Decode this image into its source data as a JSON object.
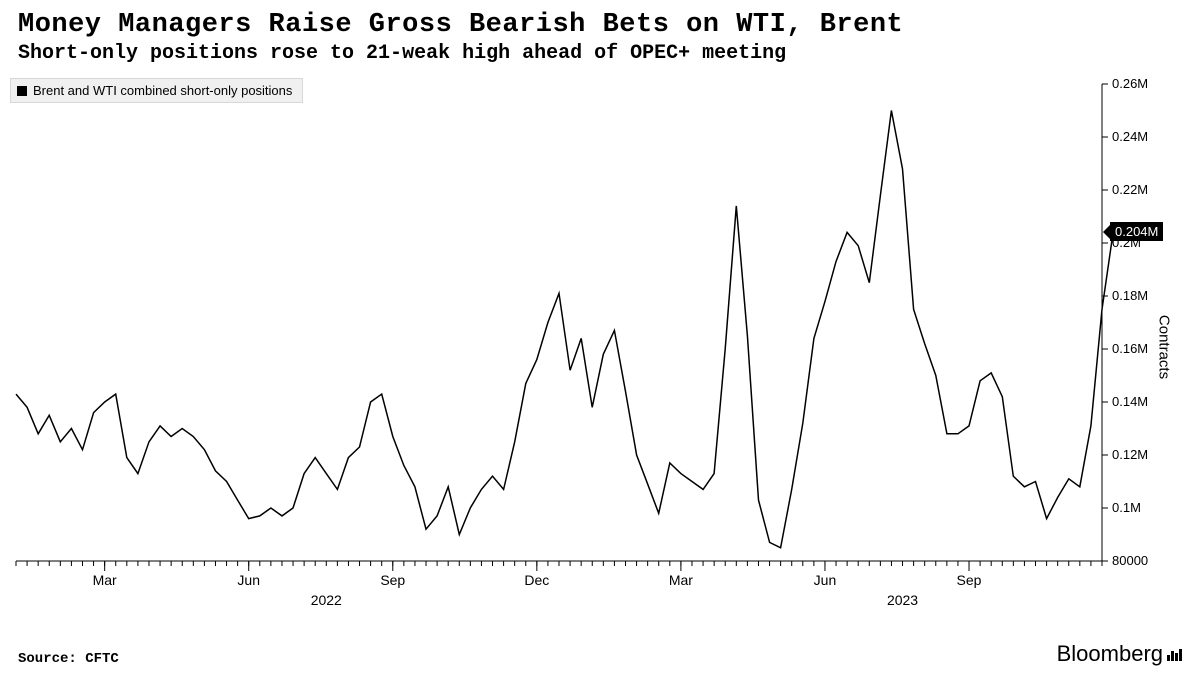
{
  "header": {
    "title": "Money Managers Raise Gross Bearish Bets on WTI, Brent",
    "subtitle": "Short-only positions rose to 21-weak high ahead of OPEC+ meeting"
  },
  "legend": {
    "series_label": "Brent and WTI combined short-only positions",
    "swatch_color": "#000000"
  },
  "chart": {
    "type": "line",
    "background_color": "#ffffff",
    "line_color": "#000000",
    "line_width": 1.5,
    "grid_color": "#ffffff",
    "tick_color": "#000000",
    "tick_font_size": 13,
    "axis_title": "Contracts",
    "ylim": [
      80000,
      260000
    ],
    "yticks": [
      {
        "v": 80000,
        "label": "80000"
      },
      {
        "v": 100000,
        "label": "0.1M"
      },
      {
        "v": 120000,
        "label": "0.12M"
      },
      {
        "v": 140000,
        "label": "0.14M"
      },
      {
        "v": 160000,
        "label": "0.16M"
      },
      {
        "v": 180000,
        "label": "0.18M"
      },
      {
        "v": 200000,
        "label": "0.2M"
      },
      {
        "v": 220000,
        "label": "0.22M"
      },
      {
        "v": 240000,
        "label": "0.24M"
      },
      {
        "v": 260000,
        "label": "0.26M"
      }
    ],
    "x_domain": [
      0,
      98
    ],
    "x_ticks_major": [
      {
        "x": 8,
        "label": "Mar"
      },
      {
        "x": 21,
        "label": "Jun"
      },
      {
        "x": 34,
        "label": "Sep"
      },
      {
        "x": 47,
        "label": "Dec"
      },
      {
        "x": 60,
        "label": "Mar"
      },
      {
        "x": 73,
        "label": "Jun"
      },
      {
        "x": 86,
        "label": "Sep"
      }
    ],
    "x_year_labels": [
      {
        "x": 28,
        "label": "2022"
      },
      {
        "x": 80,
        "label": "2023"
      }
    ],
    "x_minor_tick_step": 1,
    "last_value_flag": "0.204M",
    "series": [
      143000,
      138000,
      128000,
      135000,
      125000,
      130000,
      122000,
      136000,
      140000,
      143000,
      119000,
      113000,
      125000,
      131000,
      127000,
      130000,
      127000,
      122000,
      114000,
      110000,
      103000,
      96000,
      97000,
      100000,
      97000,
      100000,
      113000,
      119000,
      113000,
      107000,
      119000,
      123000,
      140000,
      143000,
      127000,
      116000,
      108000,
      92000,
      97000,
      108000,
      90000,
      100000,
      107000,
      112000,
      107000,
      125000,
      147000,
      156000,
      170000,
      181000,
      152000,
      164000,
      138000,
      158000,
      167000,
      144000,
      120000,
      109000,
      98000,
      117000,
      113000,
      110000,
      107000,
      113000,
      160000,
      214000,
      165000,
      103000,
      87000,
      85000,
      107000,
      132000,
      164000,
      178000,
      193000,
      204000,
      199000,
      185000,
      218000,
      250000,
      228000,
      175000,
      162000,
      150000,
      128000,
      128000,
      131000,
      148000,
      151000,
      142000,
      112000,
      108000,
      110000,
      96000,
      104000,
      111000,
      108000,
      131000,
      175000,
      204000
    ]
  },
  "footer": {
    "source": "Source: CFTC",
    "brand": "Bloomberg"
  }
}
